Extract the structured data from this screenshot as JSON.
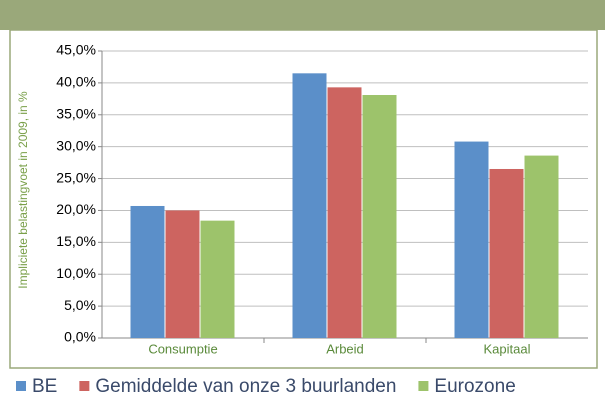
{
  "chart_data": {
    "type": "bar",
    "y_label": "Impliciete belastingvoet in 2009, in %",
    "categories": [
      "Consumptie",
      "Arbeid",
      "Kapitaal"
    ],
    "series": [
      {
        "name": "BE",
        "color": "#5b8fc9",
        "values": [
          20.7,
          41.5,
          30.8
        ]
      },
      {
        "name": "Gemiddelde van onze 3 buurlanden",
        "color": "#cd6460",
        "values": [
          20.0,
          39.3,
          26.5
        ]
      },
      {
        "name": "Eurozone",
        "color": "#9dc36b",
        "values": [
          18.4,
          38.1,
          28.6
        ]
      }
    ],
    "ylim": [
      0,
      45
    ],
    "yticks": [
      {
        "value": 0,
        "label": "0,0%"
      },
      {
        "value": 5,
        "label": "5,0%"
      },
      {
        "value": 10,
        "label": "10,0%"
      },
      {
        "value": 15,
        "label": "15,0%"
      },
      {
        "value": 20,
        "label": "20,0%"
      },
      {
        "value": 25,
        "label": "25,0%"
      },
      {
        "value": 30,
        "label": "30,0%"
      },
      {
        "value": 35,
        "label": "35,0%"
      },
      {
        "value": 40,
        "label": "40,0%"
      },
      {
        "value": 45,
        "label": "45,0%"
      }
    ],
    "grid": true,
    "legend": "bottom"
  }
}
